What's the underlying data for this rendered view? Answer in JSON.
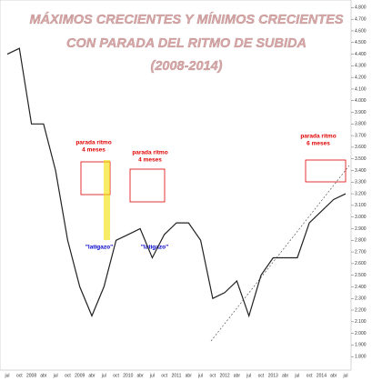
{
  "chart_data": {
    "type": "line",
    "title": [
      "MÁXIMOS CRECIENTES Y MÍNIMOS CRECIENTES",
      "CON PARADA DEL RITMO DE SUBIDA",
      "(2008-2014)"
    ],
    "annotations": [
      [
        "parada ritmo",
        "4 meses"
      ],
      [
        "parada ritmo",
        "4 meses"
      ],
      "\"latigazo\"",
      "\"latigazo\"",
      [
        "parada ritmo",
        "6 meses"
      ]
    ],
    "categories": [
      "jul",
      "oct",
      "2008",
      "abr",
      "jul",
      "oct",
      "2009",
      "abr",
      "jul",
      "oct",
      "2010",
      "abr",
      "jul",
      "oct",
      "2011",
      "abr",
      "jul",
      "oct",
      "2012",
      "abr",
      "jul",
      "oct",
      "2013",
      "abr",
      "jul",
      "oct",
      "2014",
      "abr",
      "jul"
    ],
    "values": [
      4400,
      4450,
      3800,
      3800,
      3400,
      2800,
      2400,
      2150,
      2400,
      2800,
      2850,
      2900,
      2650,
      2850,
      2950,
      2950,
      2800,
      2300,
      2350,
      2450,
      2150,
      2500,
      2650,
      2650,
      2650,
      2950,
      3050,
      3150,
      3200
    ],
    "color": "#222222",
    "ylim": [
      1700,
      4850
    ],
    "yticks": [
      {
        "value": 1800,
        "label": "1.800"
      },
      {
        "value": 1900,
        "label": "1.900"
      },
      {
        "value": 2000,
        "label": "2.000"
      },
      {
        "value": 2100,
        "label": "2.100"
      },
      {
        "value": 2200,
        "label": "2.200"
      },
      {
        "value": 2300,
        "label": "2.300"
      },
      {
        "value": 2400,
        "label": "2.400"
      },
      {
        "value": 2500,
        "label": "2.500"
      },
      {
        "value": 2600,
        "label": "2.600"
      },
      {
        "value": 2700,
        "label": "2.700"
      },
      {
        "value": 2800,
        "label": "2.800"
      },
      {
        "value": 2900,
        "label": "2.900"
      },
      {
        "value": 3000,
        "label": "3.000"
      },
      {
        "value": 3100,
        "label": "3.100"
      },
      {
        "value": 3200,
        "label": "3.200"
      },
      {
        "value": 3300,
        "label": "3.300"
      },
      {
        "value": 3400,
        "label": "3.400"
      },
      {
        "value": 3500,
        "label": "3.500"
      },
      {
        "value": 3600,
        "label": "3.600"
      },
      {
        "value": 3700,
        "label": "3.700"
      },
      {
        "value": 3800,
        "label": "3.800"
      },
      {
        "value": 3900,
        "label": "3.900"
      },
      {
        "value": 4000,
        "label": "4.000"
      },
      {
        "value": 4100,
        "label": "4.100"
      },
      {
        "value": 4200,
        "label": "4.200"
      },
      {
        "value": 4300,
        "label": "4.300"
      },
      {
        "value": 4400,
        "label": "4.400"
      },
      {
        "value": 4500,
        "label": "4.500"
      },
      {
        "value": 4600,
        "label": "4.600"
      },
      {
        "value": 4700,
        "label": "4.700"
      },
      {
        "value": 4800,
        "label": "4.800"
      }
    ],
    "grid": false
  }
}
